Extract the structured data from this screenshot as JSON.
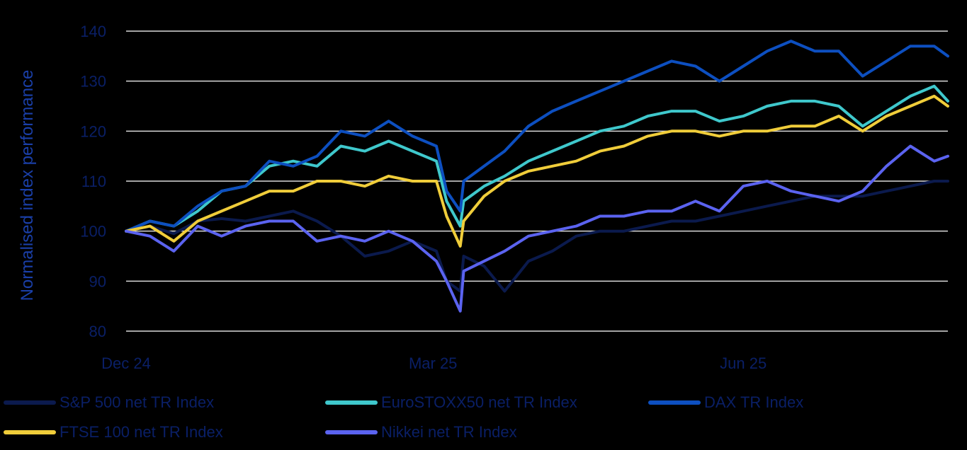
{
  "chart_data": {
    "type": "line",
    "title": "",
    "xlabel": "",
    "ylabel": "Normalised index performance",
    "ylim": [
      80,
      140
    ],
    "yticks": [
      80,
      90,
      100,
      110,
      120,
      130,
      140
    ],
    "xticks": [
      {
        "x": "2024-12-31",
        "label": "Dec 24"
      },
      {
        "x": "2025-03-31",
        "label": "Mar 25"
      },
      {
        "x": "2025-06-30",
        "label": "Jun 25"
      }
    ],
    "xlim": [
      "2024-12-31",
      "2025-08-29"
    ],
    "grid": "horizontal",
    "legend": "bottom",
    "series": [
      {
        "name": "S&P 500 net TR Index",
        "color": "#0b1a4d",
        "points": [
          [
            "2024-12-31",
            100
          ],
          [
            "2025-01-07",
            101
          ],
          [
            "2025-01-14",
            99.5
          ],
          [
            "2025-01-21",
            102
          ],
          [
            "2025-01-28",
            102.5
          ],
          [
            "2025-02-04",
            102
          ],
          [
            "2025-02-11",
            103
          ],
          [
            "2025-02-18",
            104
          ],
          [
            "2025-02-25",
            102
          ],
          [
            "2025-03-04",
            99
          ],
          [
            "2025-03-11",
            95
          ],
          [
            "2025-03-18",
            96
          ],
          [
            "2025-03-25",
            98
          ],
          [
            "2025-04-01",
            96
          ],
          [
            "2025-04-04",
            90
          ],
          [
            "2025-04-08",
            88
          ],
          [
            "2025-04-09",
            95
          ],
          [
            "2025-04-15",
            93
          ],
          [
            "2025-04-21",
            88
          ],
          [
            "2025-04-28",
            94
          ],
          [
            "2025-05-05",
            96
          ],
          [
            "2025-05-12",
            99
          ],
          [
            "2025-05-19",
            100
          ],
          [
            "2025-05-26",
            100
          ],
          [
            "2025-06-02",
            101
          ],
          [
            "2025-06-09",
            102
          ],
          [
            "2025-06-16",
            102
          ],
          [
            "2025-06-23",
            103
          ],
          [
            "2025-06-30",
            104
          ],
          [
            "2025-07-07",
            105
          ],
          [
            "2025-07-14",
            106
          ],
          [
            "2025-07-21",
            107
          ],
          [
            "2025-07-28",
            107
          ],
          [
            "2025-08-04",
            107
          ],
          [
            "2025-08-11",
            108
          ],
          [
            "2025-08-18",
            109
          ],
          [
            "2025-08-25",
            110
          ],
          [
            "2025-08-29",
            110
          ]
        ]
      },
      {
        "name": "EuroSTOXX50 net TR Index",
        "color": "#3fc8cc",
        "points": [
          [
            "2024-12-31",
            100
          ],
          [
            "2025-01-07",
            102
          ],
          [
            "2025-01-14",
            101
          ],
          [
            "2025-01-21",
            104
          ],
          [
            "2025-01-28",
            108
          ],
          [
            "2025-02-04",
            109
          ],
          [
            "2025-02-11",
            113
          ],
          [
            "2025-02-18",
            114
          ],
          [
            "2025-02-25",
            113
          ],
          [
            "2025-03-04",
            117
          ],
          [
            "2025-03-11",
            116
          ],
          [
            "2025-03-18",
            118
          ],
          [
            "2025-03-25",
            116
          ],
          [
            "2025-04-01",
            114
          ],
          [
            "2025-04-04",
            106
          ],
          [
            "2025-04-08",
            101
          ],
          [
            "2025-04-09",
            106
          ],
          [
            "2025-04-15",
            109
          ],
          [
            "2025-04-21",
            111
          ],
          [
            "2025-04-28",
            114
          ],
          [
            "2025-05-05",
            116
          ],
          [
            "2025-05-12",
            118
          ],
          [
            "2025-05-19",
            120
          ],
          [
            "2025-05-26",
            121
          ],
          [
            "2025-06-02",
            123
          ],
          [
            "2025-06-09",
            124
          ],
          [
            "2025-06-16",
            124
          ],
          [
            "2025-06-23",
            122
          ],
          [
            "2025-06-30",
            123
          ],
          [
            "2025-07-07",
            125
          ],
          [
            "2025-07-14",
            126
          ],
          [
            "2025-07-21",
            126
          ],
          [
            "2025-07-28",
            125
          ],
          [
            "2025-08-04",
            121
          ],
          [
            "2025-08-11",
            124
          ],
          [
            "2025-08-18",
            127
          ],
          [
            "2025-08-25",
            129
          ],
          [
            "2025-08-29",
            126
          ]
        ]
      },
      {
        "name": "DAX TR Index",
        "color": "#0d4fc0",
        "points": [
          [
            "2024-12-31",
            100
          ],
          [
            "2025-01-07",
            102
          ],
          [
            "2025-01-14",
            101
          ],
          [
            "2025-01-21",
            105
          ],
          [
            "2025-01-28",
            108
          ],
          [
            "2025-02-04",
            109
          ],
          [
            "2025-02-11",
            114
          ],
          [
            "2025-02-18",
            113
          ],
          [
            "2025-02-25",
            115
          ],
          [
            "2025-03-04",
            120
          ],
          [
            "2025-03-11",
            119
          ],
          [
            "2025-03-18",
            122
          ],
          [
            "2025-03-25",
            119
          ],
          [
            "2025-04-01",
            117
          ],
          [
            "2025-04-04",
            108
          ],
          [
            "2025-04-08",
            104
          ],
          [
            "2025-04-09",
            110
          ],
          [
            "2025-04-15",
            113
          ],
          [
            "2025-04-21",
            116
          ],
          [
            "2025-04-28",
            121
          ],
          [
            "2025-05-05",
            124
          ],
          [
            "2025-05-12",
            126
          ],
          [
            "2025-05-19",
            128
          ],
          [
            "2025-05-26",
            130
          ],
          [
            "2025-06-02",
            132
          ],
          [
            "2025-06-09",
            134
          ],
          [
            "2025-06-16",
            133
          ],
          [
            "2025-06-23",
            130
          ],
          [
            "2025-06-30",
            133
          ],
          [
            "2025-07-07",
            136
          ],
          [
            "2025-07-14",
            138
          ],
          [
            "2025-07-21",
            136
          ],
          [
            "2025-07-28",
            136
          ],
          [
            "2025-08-04",
            131
          ],
          [
            "2025-08-11",
            134
          ],
          [
            "2025-08-18",
            137
          ],
          [
            "2025-08-25",
            137
          ],
          [
            "2025-08-29",
            135
          ]
        ]
      },
      {
        "name": "FTSE 100 net TR Index",
        "color": "#f0cd3a",
        "points": [
          [
            "2024-12-31",
            100
          ],
          [
            "2025-01-07",
            101
          ],
          [
            "2025-01-14",
            98
          ],
          [
            "2025-01-21",
            102
          ],
          [
            "2025-01-28",
            104
          ],
          [
            "2025-02-04",
            106
          ],
          [
            "2025-02-11",
            108
          ],
          [
            "2025-02-18",
            108
          ],
          [
            "2025-02-25",
            110
          ],
          [
            "2025-03-04",
            110
          ],
          [
            "2025-03-11",
            109
          ],
          [
            "2025-03-18",
            111
          ],
          [
            "2025-03-25",
            110
          ],
          [
            "2025-04-01",
            110
          ],
          [
            "2025-04-04",
            103
          ],
          [
            "2025-04-08",
            97
          ],
          [
            "2025-04-09",
            102
          ],
          [
            "2025-04-15",
            107
          ],
          [
            "2025-04-21",
            110
          ],
          [
            "2025-04-28",
            112
          ],
          [
            "2025-05-05",
            113
          ],
          [
            "2025-05-12",
            114
          ],
          [
            "2025-05-19",
            116
          ],
          [
            "2025-05-26",
            117
          ],
          [
            "2025-06-02",
            119
          ],
          [
            "2025-06-09",
            120
          ],
          [
            "2025-06-16",
            120
          ],
          [
            "2025-06-23",
            119
          ],
          [
            "2025-06-30",
            120
          ],
          [
            "2025-07-07",
            120
          ],
          [
            "2025-07-14",
            121
          ],
          [
            "2025-07-21",
            121
          ],
          [
            "2025-07-28",
            123
          ],
          [
            "2025-08-04",
            120
          ],
          [
            "2025-08-11",
            123
          ],
          [
            "2025-08-18",
            125
          ],
          [
            "2025-08-25",
            127
          ],
          [
            "2025-08-29",
            125
          ]
        ]
      },
      {
        "name": "Nikkei net TR Index",
        "color": "#5b63f0",
        "points": [
          [
            "2024-12-31",
            100
          ],
          [
            "2025-01-07",
            99
          ],
          [
            "2025-01-14",
            96
          ],
          [
            "2025-01-21",
            101
          ],
          [
            "2025-01-28",
            99
          ],
          [
            "2025-02-04",
            101
          ],
          [
            "2025-02-11",
            102
          ],
          [
            "2025-02-18",
            102
          ],
          [
            "2025-02-25",
            98
          ],
          [
            "2025-03-04",
            99
          ],
          [
            "2025-03-11",
            98
          ],
          [
            "2025-03-18",
            100
          ],
          [
            "2025-03-25",
            98
          ],
          [
            "2025-04-01",
            94
          ],
          [
            "2025-04-04",
            90
          ],
          [
            "2025-04-08",
            84
          ],
          [
            "2025-04-09",
            92
          ],
          [
            "2025-04-15",
            94
          ],
          [
            "2025-04-21",
            96
          ],
          [
            "2025-04-28",
            99
          ],
          [
            "2025-05-05",
            100
          ],
          [
            "2025-05-12",
            101
          ],
          [
            "2025-05-19",
            103
          ],
          [
            "2025-05-26",
            103
          ],
          [
            "2025-06-02",
            104
          ],
          [
            "2025-06-09",
            104
          ],
          [
            "2025-06-16",
            106
          ],
          [
            "2025-06-23",
            104
          ],
          [
            "2025-06-30",
            109
          ],
          [
            "2025-07-07",
            110
          ],
          [
            "2025-07-14",
            108
          ],
          [
            "2025-07-21",
            107
          ],
          [
            "2025-07-28",
            106
          ],
          [
            "2025-08-04",
            108
          ],
          [
            "2025-08-11",
            113
          ],
          [
            "2025-08-18",
            117
          ],
          [
            "2025-08-25",
            114
          ],
          [
            "2025-08-29",
            115
          ]
        ]
      }
    ]
  }
}
